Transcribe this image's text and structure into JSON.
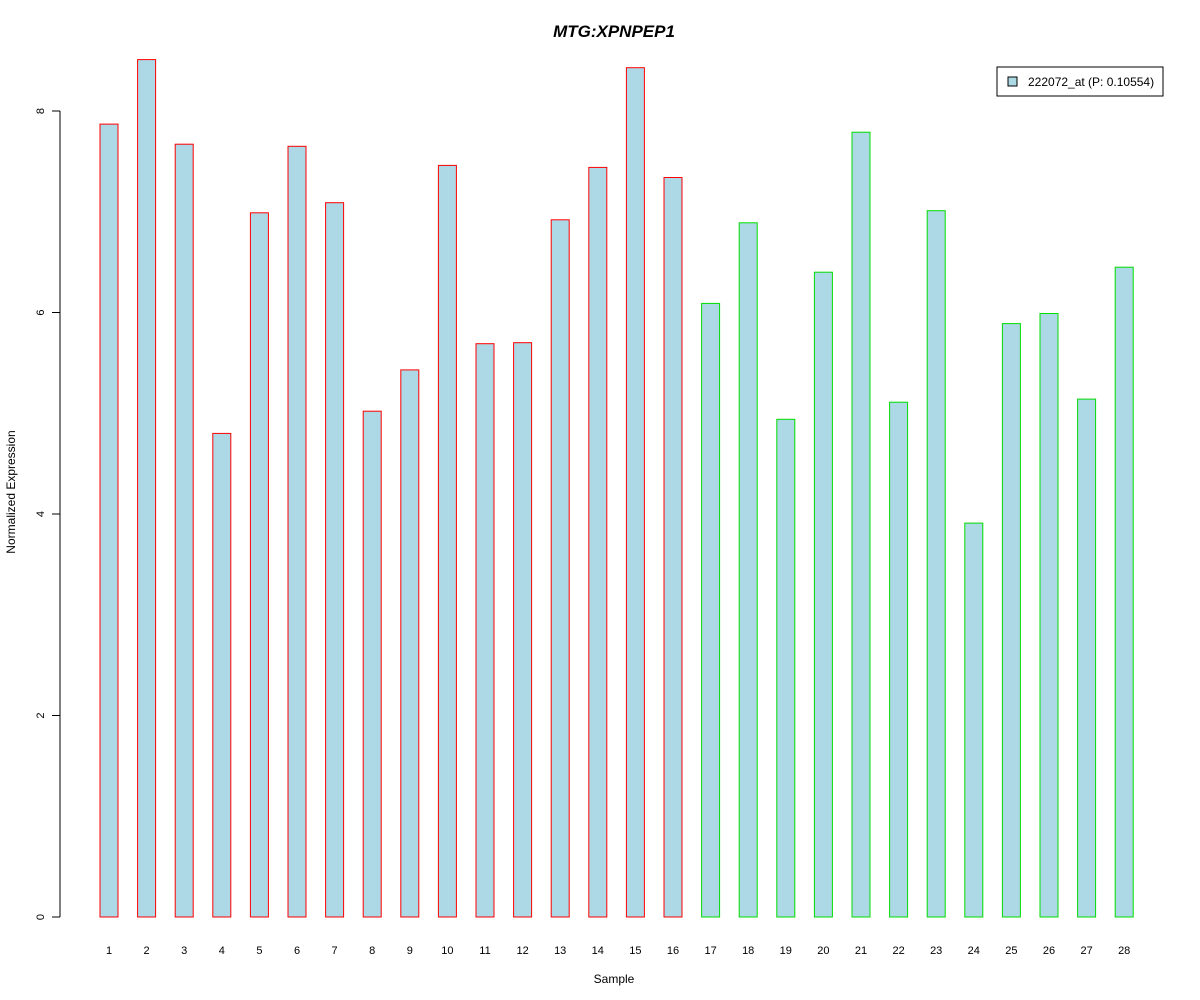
{
  "chart_data": {
    "type": "bar",
    "title": "MTG:XPNPEP1",
    "xlabel": "Sample",
    "ylabel": "Normalized Expression",
    "ylim": [
      0,
      8.5
    ],
    "yticks": [
      0,
      2,
      4,
      6,
      8
    ],
    "categories": [
      "1",
      "2",
      "3",
      "4",
      "5",
      "6",
      "7",
      "8",
      "9",
      "10",
      "11",
      "12",
      "13",
      "14",
      "15",
      "16",
      "17",
      "18",
      "19",
      "20",
      "21",
      "22",
      "23",
      "24",
      "25",
      "26",
      "27",
      "28"
    ],
    "series": [
      {
        "name": "222072_at (P: 0.10554)",
        "values": [
          7.87,
          8.51,
          7.67,
          4.8,
          6.99,
          7.65,
          7.09,
          5.02,
          5.43,
          7.46,
          5.69,
          5.7,
          6.92,
          7.44,
          8.43,
          7.34,
          6.09,
          6.89,
          4.94,
          6.4,
          7.79,
          5.11,
          7.01,
          3.91,
          5.89,
          5.99,
          5.14,
          6.45
        ]
      }
    ],
    "group_border_colors": [
      "#ff0000",
      "#ff0000",
      "#ff0000",
      "#ff0000",
      "#ff0000",
      "#ff0000",
      "#ff0000",
      "#ff0000",
      "#ff0000",
      "#ff0000",
      "#ff0000",
      "#ff0000",
      "#ff0000",
      "#ff0000",
      "#ff0000",
      "#ff0000",
      "#00dd00",
      "#00dd00",
      "#00dd00",
      "#00dd00",
      "#00dd00",
      "#00dd00",
      "#00dd00",
      "#00dd00",
      "#00dd00",
      "#00dd00",
      "#00dd00",
      "#00dd00"
    ],
    "bar_fill": "#add8e6",
    "title_color": "#0000cc",
    "legend_position": "top-right",
    "grid": false
  }
}
